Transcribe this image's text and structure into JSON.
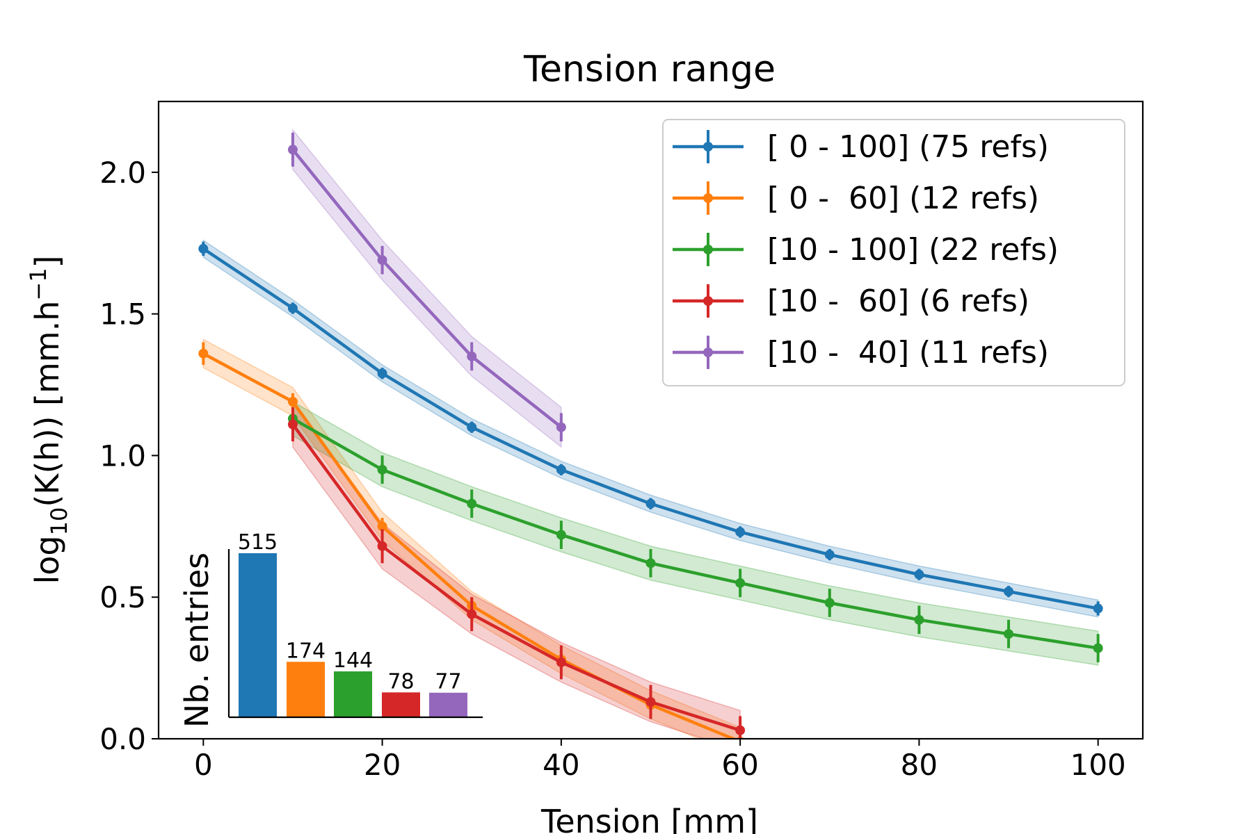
{
  "chart_data": {
    "type": "line",
    "title": "Tension range",
    "xlabel": "Tension [mm]",
    "ylabel_main": "log",
    "ylabel_sub": "10",
    "ylabel_mid": "(K(h)) [mm.h",
    "ylabel_sup": "−1",
    "ylabel_end": "]",
    "xlim": [
      -5,
      105
    ],
    "ylim": [
      0,
      2.25
    ],
    "xticks": [
      0,
      20,
      40,
      60,
      80,
      100
    ],
    "xtick_labels": [
      "0",
      "20",
      "40",
      "60",
      "80",
      "100"
    ],
    "yticks": [
      0,
      0.5,
      1.0,
      1.5,
      2.0
    ],
    "ytick_labels": [
      "0.0",
      "0.5",
      "1.0",
      "1.5",
      "2.0"
    ],
    "grid": false,
    "legend_position": "top-right",
    "series": [
      {
        "name": "[ 0 - 100] (75 refs)",
        "color": "#1f77b4",
        "x": [
          0,
          10,
          20,
          30,
          40,
          50,
          60,
          70,
          80,
          90,
          100
        ],
        "y": [
          1.73,
          1.52,
          1.29,
          1.1,
          0.95,
          0.83,
          0.73,
          0.65,
          0.58,
          0.52,
          0.46
        ],
        "err": [
          0.025,
          0.02,
          0.02,
          0.02,
          0.02,
          0.02,
          0.02,
          0.02,
          0.02,
          0.02,
          0.025
        ],
        "band": [
          0.03,
          0.03,
          0.03,
          0.03,
          0.03,
          0.03,
          0.03,
          0.03,
          0.03,
          0.03,
          0.03
        ]
      },
      {
        "name": "[ 0 -  60] (12 refs)",
        "color": "#ff7f0e",
        "x": [
          0,
          10,
          20,
          30,
          40,
          50,
          60
        ],
        "y": [
          1.36,
          1.19,
          0.75,
          0.47,
          0.28,
          0.12,
          -0.01
        ],
        "err": [
          0.04,
          0.03,
          0.03,
          0.03,
          0.03,
          0.04,
          0.04
        ],
        "band": [
          0.05,
          0.05,
          0.05,
          0.05,
          0.05,
          0.05,
          0.05
        ]
      },
      {
        "name": "[10 - 100] (22 refs)",
        "color": "#2ca02c",
        "x": [
          10,
          20,
          30,
          40,
          50,
          60,
          70,
          80,
          90,
          100
        ],
        "y": [
          1.13,
          0.95,
          0.83,
          0.72,
          0.62,
          0.55,
          0.48,
          0.42,
          0.37,
          0.32
        ],
        "err": [
          0.04,
          0.05,
          0.05,
          0.05,
          0.05,
          0.05,
          0.05,
          0.05,
          0.05,
          0.05
        ],
        "band": [
          0.06,
          0.06,
          0.06,
          0.06,
          0.06,
          0.06,
          0.06,
          0.06,
          0.06,
          0.06
        ]
      },
      {
        "name": "[10 -  60] (6 refs)",
        "color": "#d62728",
        "x": [
          10,
          20,
          30,
          40,
          50,
          60
        ],
        "y": [
          1.11,
          0.68,
          0.44,
          0.27,
          0.13,
          0.03
        ],
        "err": [
          0.06,
          0.06,
          0.06,
          0.06,
          0.06,
          0.05
        ],
        "band": [
          0.08,
          0.08,
          0.07,
          0.07,
          0.07,
          0.07
        ]
      },
      {
        "name": "[10 -  40] (11 refs)",
        "color": "#9467bd",
        "x": [
          10,
          20,
          30,
          40
        ],
        "y": [
          2.08,
          1.69,
          1.35,
          1.1
        ],
        "err": [
          0.06,
          0.05,
          0.05,
          0.05
        ],
        "band": [
          0.07,
          0.07,
          0.07,
          0.07
        ]
      }
    ],
    "inset": {
      "type": "bar",
      "ylabel": "Nb. entries",
      "values": [
        515,
        174,
        144,
        78,
        77
      ],
      "value_labels": [
        "515",
        "174",
        "144",
        "78",
        "77"
      ],
      "colors": [
        "#1f77b4",
        "#ff7f0e",
        "#2ca02c",
        "#d62728",
        "#9467bd"
      ]
    }
  }
}
